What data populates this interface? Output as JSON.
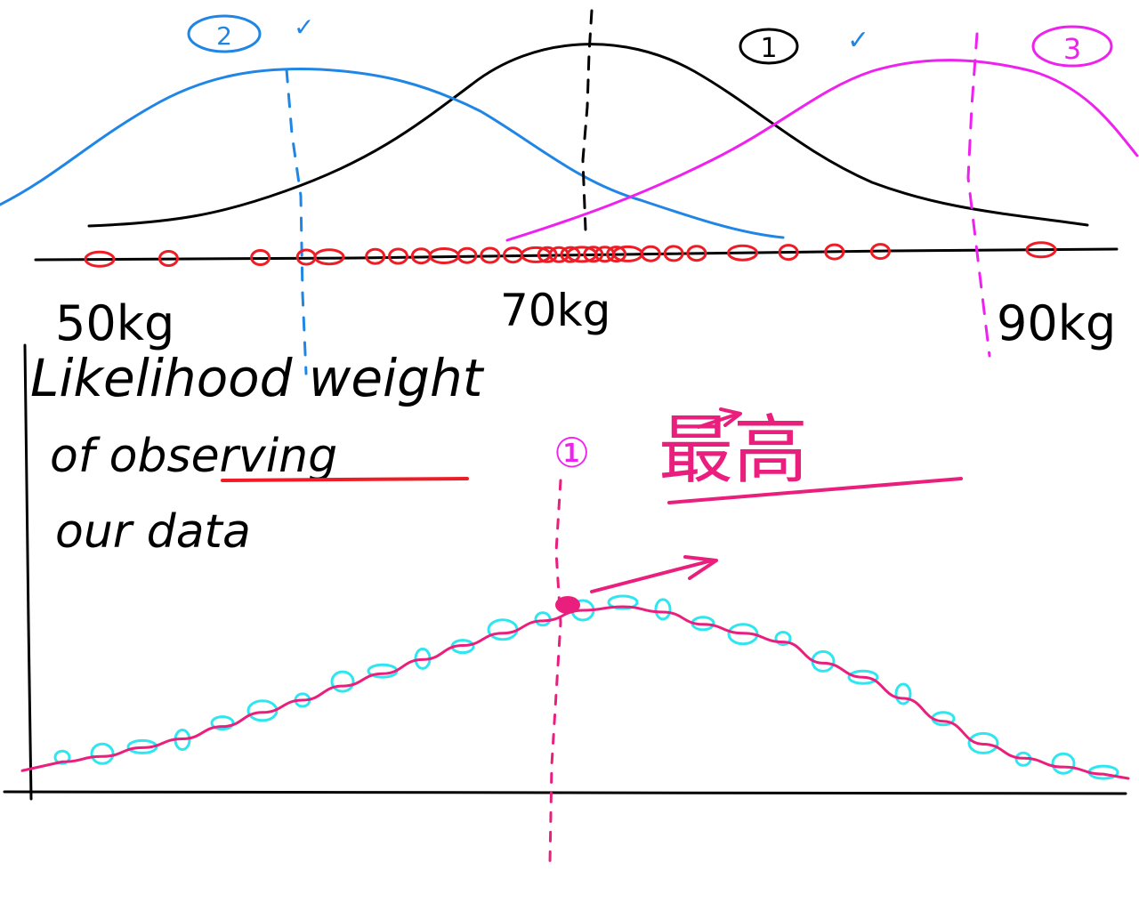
{
  "colors": {
    "ink": "#000000",
    "blue": "#1f86e6",
    "magenta": "#ee22ee",
    "red": "#ee1c24",
    "pink": "#ea1f7d",
    "cyan": "#2ee6f0"
  },
  "top_diagram": {
    "curves": [
      {
        "label": "1",
        "check": "✓",
        "color_key": "ink",
        "mean_kg": 70
      },
      {
        "label": "2",
        "check": "✓",
        "color_key": "blue",
        "mean_kg": 53
      },
      {
        "label": "3",
        "check": "✓",
        "color_key": "magenta",
        "mean_kg": 89
      }
    ],
    "axis_labels": {
      "left": "50kg",
      "mid": "70kg",
      "right": "90kg"
    },
    "observations_kg": [
      48,
      51,
      55,
      57,
      58,
      60,
      61,
      62,
      63,
      64,
      65,
      66,
      67,
      67.5,
      68,
      68.5,
      69,
      69.5,
      70,
      70.5,
      71,
      72,
      73,
      74,
      76,
      78,
      80,
      82,
      89
    ]
  },
  "annotation": {
    "line1": "Likelihood weight",
    "line2": "of observing",
    "line3": "our data",
    "marker": "①",
    "chinese": "最高"
  },
  "bottom_chart": {
    "title": "likelihood weight of observing our data",
    "peak_label": "①",
    "points_y": [
      0.12,
      0.15,
      0.2,
      0.25,
      0.32,
      0.4,
      0.47,
      0.55,
      0.62,
      0.7,
      0.78,
      0.85,
      0.92,
      0.98,
      1.0,
      0.97,
      0.9,
      0.85,
      0.8,
      0.68,
      0.6,
      0.48,
      0.35,
      0.22,
      0.14,
      0.09,
      0.05
    ]
  }
}
